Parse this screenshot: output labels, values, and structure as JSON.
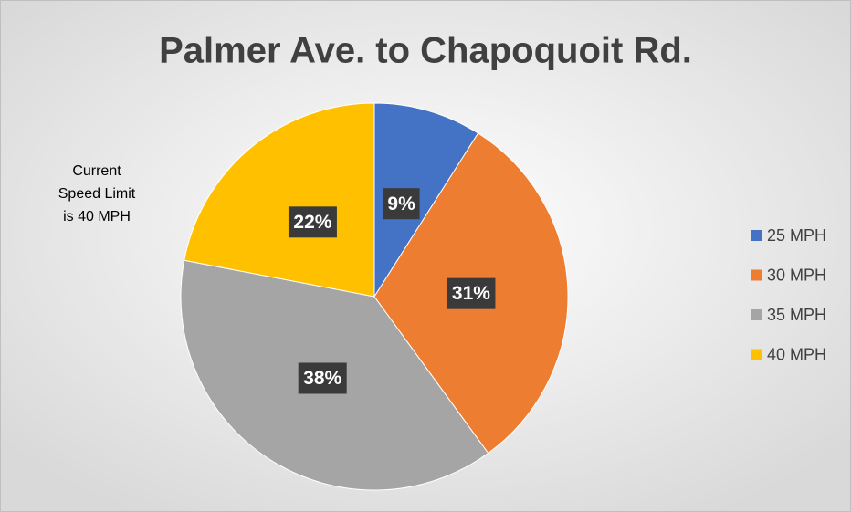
{
  "chart_data": {
    "type": "pie",
    "title": "Palmer Ave. to Chapoquoit Rd.",
    "categories": [
      "25 MPH",
      "30 MPH",
      "35 MPH",
      "40 MPH"
    ],
    "values": [
      9,
      31,
      38,
      22
    ],
    "value_labels": [
      "9%",
      "31%",
      "38%",
      "22%"
    ],
    "colors": [
      "#4472c4",
      "#ed7d31",
      "#a5a5a5",
      "#ffc000"
    ],
    "annotation": [
      "Current",
      "Speed Limit",
      "is 40 MPH"
    ],
    "legend": "right"
  }
}
